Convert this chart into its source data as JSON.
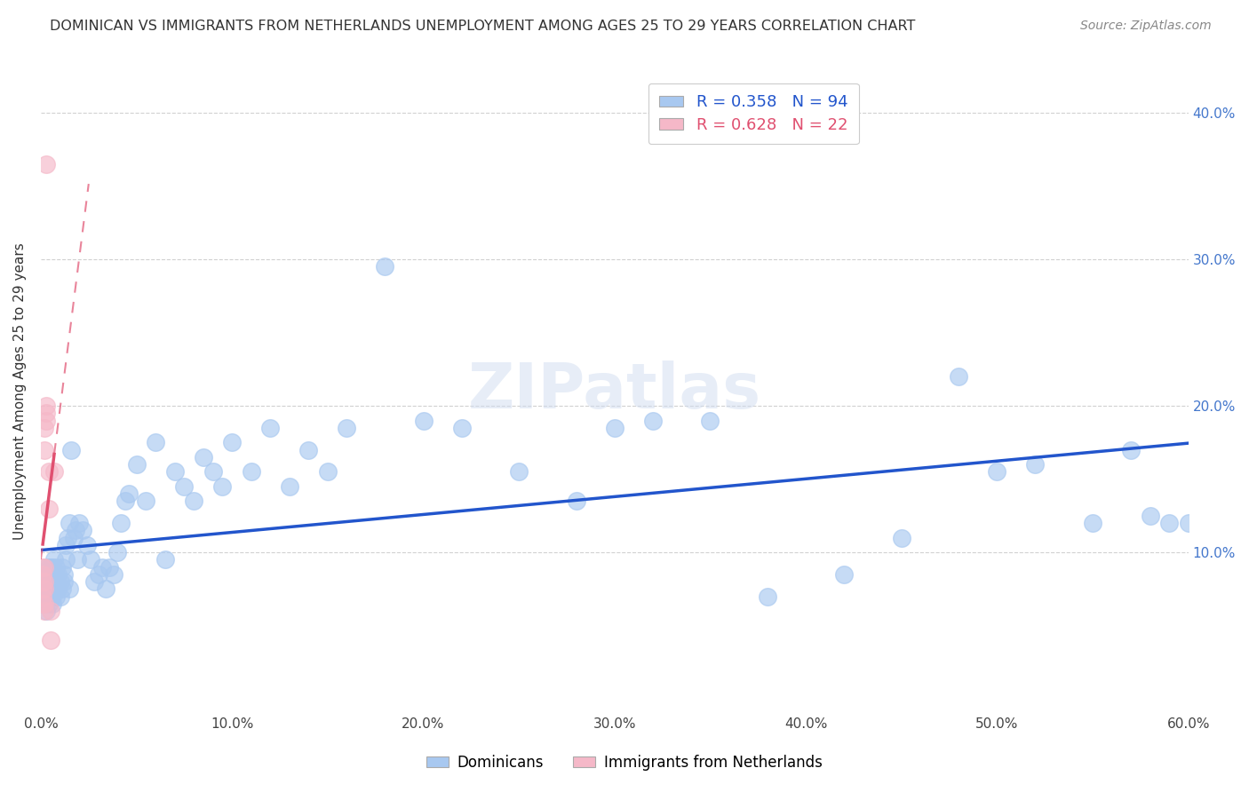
{
  "title": "DOMINICAN VS IMMIGRANTS FROM NETHERLANDS UNEMPLOYMENT AMONG AGES 25 TO 29 YEARS CORRELATION CHART",
  "source": "Source: ZipAtlas.com",
  "ylabel": "Unemployment Among Ages 25 to 29 years",
  "xlabel_ticks": [
    "0.0%",
    "10.0%",
    "20.0%",
    "30.0%",
    "40.0%",
    "50.0%",
    "60.0%"
  ],
  "xlabel_vals": [
    0.0,
    0.1,
    0.2,
    0.3,
    0.4,
    0.5,
    0.6
  ],
  "ylabel_ticks": [
    "10.0%",
    "20.0%",
    "30.0%",
    "40.0%"
  ],
  "ylabel_vals": [
    0.1,
    0.2,
    0.3,
    0.4
  ],
  "xlim": [
    0.0,
    0.6
  ],
  "ylim": [
    -0.01,
    0.43
  ],
  "blue_R": 0.358,
  "blue_N": 94,
  "pink_R": 0.628,
  "pink_N": 22,
  "blue_color": "#A8C8F0",
  "pink_color": "#F5B8C8",
  "blue_line_color": "#2255CC",
  "pink_line_color": "#E05070",
  "legend_label_blue": "Dominicans",
  "legend_label_pink": "Immigrants from Netherlands",
  "blue_x": [
    0.001,
    0.001,
    0.002,
    0.002,
    0.002,
    0.003,
    0.003,
    0.003,
    0.003,
    0.004,
    0.004,
    0.004,
    0.004,
    0.005,
    0.005,
    0.005,
    0.005,
    0.006,
    0.006,
    0.006,
    0.006,
    0.007,
    0.007,
    0.007,
    0.008,
    0.008,
    0.008,
    0.009,
    0.009,
    0.01,
    0.01,
    0.011,
    0.011,
    0.012,
    0.012,
    0.013,
    0.013,
    0.014,
    0.015,
    0.015,
    0.016,
    0.017,
    0.018,
    0.019,
    0.02,
    0.022,
    0.024,
    0.026,
    0.028,
    0.03,
    0.032,
    0.034,
    0.036,
    0.038,
    0.04,
    0.042,
    0.044,
    0.046,
    0.05,
    0.055,
    0.06,
    0.065,
    0.07,
    0.075,
    0.08,
    0.085,
    0.09,
    0.095,
    0.1,
    0.11,
    0.12,
    0.13,
    0.14,
    0.15,
    0.16,
    0.18,
    0.2,
    0.22,
    0.25,
    0.28,
    0.3,
    0.32,
    0.35,
    0.38,
    0.42,
    0.45,
    0.48,
    0.5,
    0.52,
    0.55,
    0.57,
    0.58,
    0.59,
    0.6
  ],
  "blue_y": [
    0.075,
    0.08,
    0.065,
    0.07,
    0.085,
    0.06,
    0.07,
    0.075,
    0.09,
    0.065,
    0.075,
    0.08,
    0.09,
    0.07,
    0.075,
    0.08,
    0.09,
    0.065,
    0.07,
    0.08,
    0.09,
    0.075,
    0.085,
    0.095,
    0.07,
    0.08,
    0.09,
    0.075,
    0.085,
    0.07,
    0.08,
    0.075,
    0.09,
    0.08,
    0.085,
    0.095,
    0.105,
    0.11,
    0.075,
    0.12,
    0.17,
    0.11,
    0.115,
    0.095,
    0.12,
    0.115,
    0.105,
    0.095,
    0.08,
    0.085,
    0.09,
    0.075,
    0.09,
    0.085,
    0.1,
    0.12,
    0.135,
    0.14,
    0.16,
    0.135,
    0.175,
    0.095,
    0.155,
    0.145,
    0.135,
    0.165,
    0.155,
    0.145,
    0.175,
    0.155,
    0.185,
    0.145,
    0.17,
    0.155,
    0.185,
    0.295,
    0.19,
    0.185,
    0.155,
    0.135,
    0.185,
    0.19,
    0.19,
    0.07,
    0.085,
    0.11,
    0.22,
    0.155,
    0.16,
    0.12,
    0.17,
    0.125,
    0.12,
    0.12
  ],
  "pink_x": [
    0.001,
    0.001,
    0.001,
    0.001,
    0.001,
    0.001,
    0.002,
    0.002,
    0.002,
    0.002,
    0.002,
    0.002,
    0.002,
    0.003,
    0.003,
    0.003,
    0.003,
    0.004,
    0.004,
    0.005,
    0.005,
    0.007
  ],
  "pink_y": [
    0.065,
    0.07,
    0.075,
    0.08,
    0.085,
    0.09,
    0.06,
    0.065,
    0.075,
    0.08,
    0.09,
    0.17,
    0.185,
    0.19,
    0.195,
    0.2,
    0.365,
    0.13,
    0.155,
    0.04,
    0.06,
    0.155
  ]
}
